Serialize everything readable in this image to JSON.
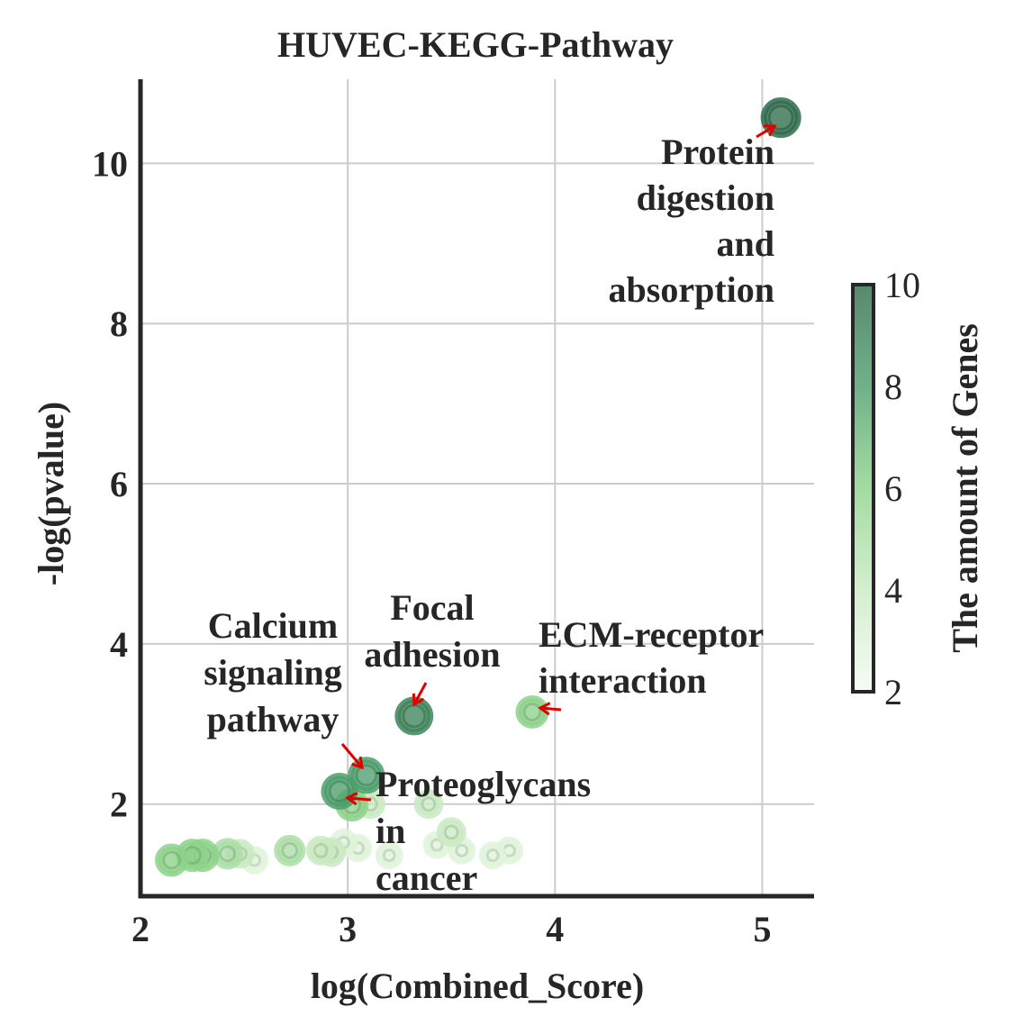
{
  "chart_data": {
    "type": "scatter",
    "title": "HUVEC-KEGG-Pathway",
    "xlabel": "log(Combined_Score)",
    "ylabel": "-log(pvalue)",
    "xlim": [
      2.0,
      5.25
    ],
    "ylim": [
      0.85,
      11.05
    ],
    "x_ticks": [
      2,
      3,
      4,
      5
    ],
    "y_ticks": [
      2,
      4,
      6,
      8,
      10
    ],
    "x_tick_labels": [
      "2",
      "3",
      "4",
      "5"
    ],
    "y_tick_labels": [
      "2",
      "4",
      "6",
      "8",
      "10"
    ],
    "grid": true,
    "colorbar": {
      "label": "The amount of Genes",
      "min": 2,
      "max": 10,
      "ticks": [
        2,
        4,
        6,
        8,
        10
      ],
      "tick_labels": [
        "2",
        "4",
        "6",
        "8",
        "10"
      ],
      "colors": [
        "#f4fbf2",
        "#c9eac2",
        "#8dd28a",
        "#4d9d6c",
        "#2e6b4a"
      ]
    },
    "points": [
      {
        "x": 5.09,
        "y": 10.57,
        "genes": 10
      },
      {
        "x": 3.32,
        "y": 3.1,
        "genes": 9
      },
      {
        "x": 3.89,
        "y": 3.15,
        "genes": 6
      },
      {
        "x": 3.09,
        "y": 2.36,
        "genes": 8
      },
      {
        "x": 2.96,
        "y": 2.16,
        "genes": 8
      },
      {
        "x": 3.02,
        "y": 1.99,
        "genes": 6
      },
      {
        "x": 3.11,
        "y": 2.0,
        "genes": 4
      },
      {
        "x": 3.39,
        "y": 2.0,
        "genes": 4
      },
      {
        "x": 3.5,
        "y": 1.65,
        "genes": 4
      },
      {
        "x": 3.43,
        "y": 1.49,
        "genes": 3
      },
      {
        "x": 3.55,
        "y": 1.42,
        "genes": 3
      },
      {
        "x": 3.78,
        "y": 1.42,
        "genes": 3
      },
      {
        "x": 3.7,
        "y": 1.36,
        "genes": 3
      },
      {
        "x": 3.2,
        "y": 1.36,
        "genes": 3
      },
      {
        "x": 3.05,
        "y": 1.45,
        "genes": 3
      },
      {
        "x": 2.98,
        "y": 1.52,
        "genes": 3
      },
      {
        "x": 2.92,
        "y": 1.4,
        "genes": 4
      },
      {
        "x": 2.87,
        "y": 1.42,
        "genes": 4
      },
      {
        "x": 2.72,
        "y": 1.42,
        "genes": 5
      },
      {
        "x": 2.55,
        "y": 1.3,
        "genes": 3
      },
      {
        "x": 2.48,
        "y": 1.38,
        "genes": 4
      },
      {
        "x": 2.42,
        "y": 1.38,
        "genes": 5
      },
      {
        "x": 2.3,
        "y": 1.36,
        "genes": 6
      },
      {
        "x": 2.25,
        "y": 1.36,
        "genes": 6
      },
      {
        "x": 2.15,
        "y": 1.3,
        "genes": 6
      }
    ],
    "annotations": [
      {
        "lines": [
          "Protein",
          "digestion",
          "and",
          "absorption"
        ],
        "point": 0
      },
      {
        "lines": [
          "Focal",
          "adhesion"
        ],
        "point": 1
      },
      {
        "lines": [
          "ECM-receptor",
          "interaction"
        ],
        "point": 2
      },
      {
        "lines": [
          "Calcium",
          "signaling",
          "pathway"
        ],
        "point": 3
      },
      {
        "lines": [
          "Proteoglycans",
          "in",
          "cancer"
        ],
        "point": 4
      }
    ]
  }
}
